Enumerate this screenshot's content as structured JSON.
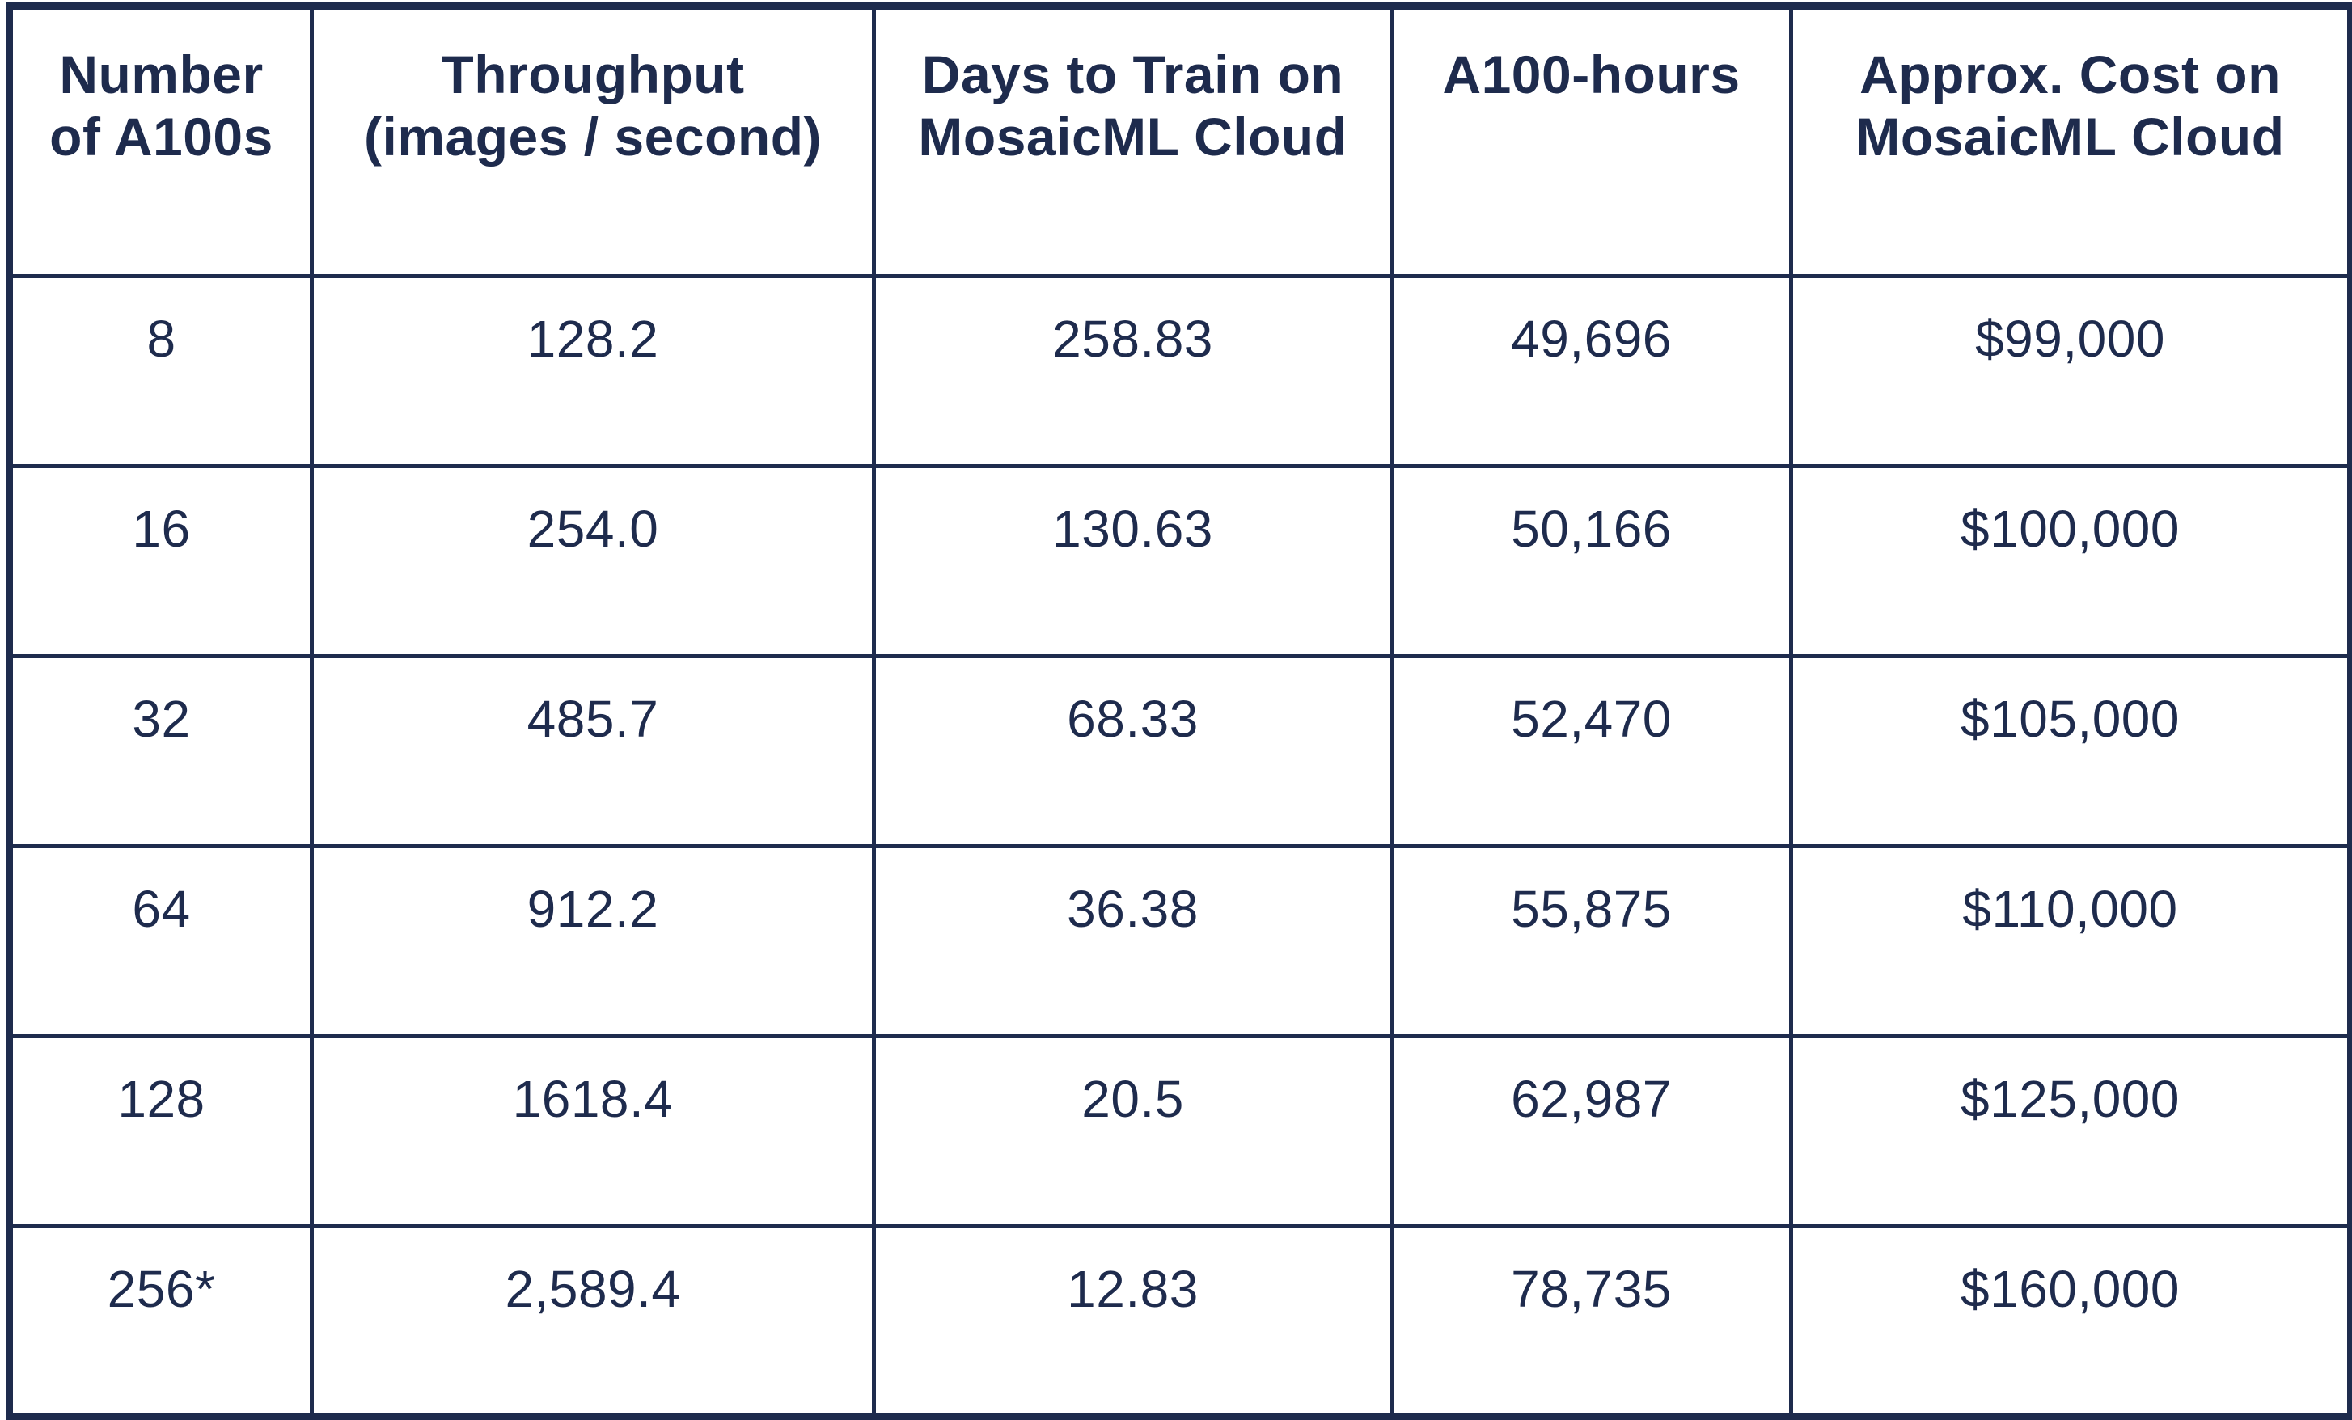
{
  "colors": {
    "text_navy": "#1e2b4d",
    "border_navy": "#1e2b4d",
    "background": "#ffffff"
  },
  "chart_data": {
    "type": "table",
    "title": "",
    "columns": [
      "Number\nof A100s",
      "Throughput\n(images / second)",
      "Days to Train on\nMosaicML Cloud",
      "A100-hours",
      "Approx. Cost on\nMosaicML Cloud"
    ],
    "rows": [
      [
        "8",
        "128.2",
        "258.83",
        "49,696",
        "$99,000"
      ],
      [
        "16",
        "254.0",
        "130.63",
        "50,166",
        "$100,000"
      ],
      [
        "32",
        "485.7",
        "68.33",
        "52,470",
        "$105,000"
      ],
      [
        "64",
        "912.2",
        "36.38",
        "55,875",
        "$110,000"
      ],
      [
        "128",
        "1618.4",
        "20.5",
        "62,987",
        "$125,000"
      ],
      [
        "256*",
        "2,589.4",
        "12.83",
        "78,735",
        "$160,000"
      ]
    ],
    "numeric": {
      "a100_counts": [
        8,
        16,
        32,
        64,
        128,
        256
      ],
      "throughput_images_per_second": [
        128.2,
        254.0,
        485.7,
        912.2,
        1618.4,
        2589.4
      ],
      "days_to_train_on_mosaicml_cloud": [
        258.83,
        130.63,
        68.33,
        36.38,
        20.5,
        12.83
      ],
      "a100_hours": [
        49696,
        50166,
        52470,
        55875,
        62987,
        78735
      ],
      "approx_cost_on_mosaicml_cloud_usd": [
        99000,
        100000,
        105000,
        110000,
        125000,
        160000
      ]
    },
    "footnote_marker_on_last_row": "*",
    "layout_hints": {
      "grid": "on",
      "header_row": true,
      "text_align": "center",
      "vertical_align": "top"
    }
  }
}
